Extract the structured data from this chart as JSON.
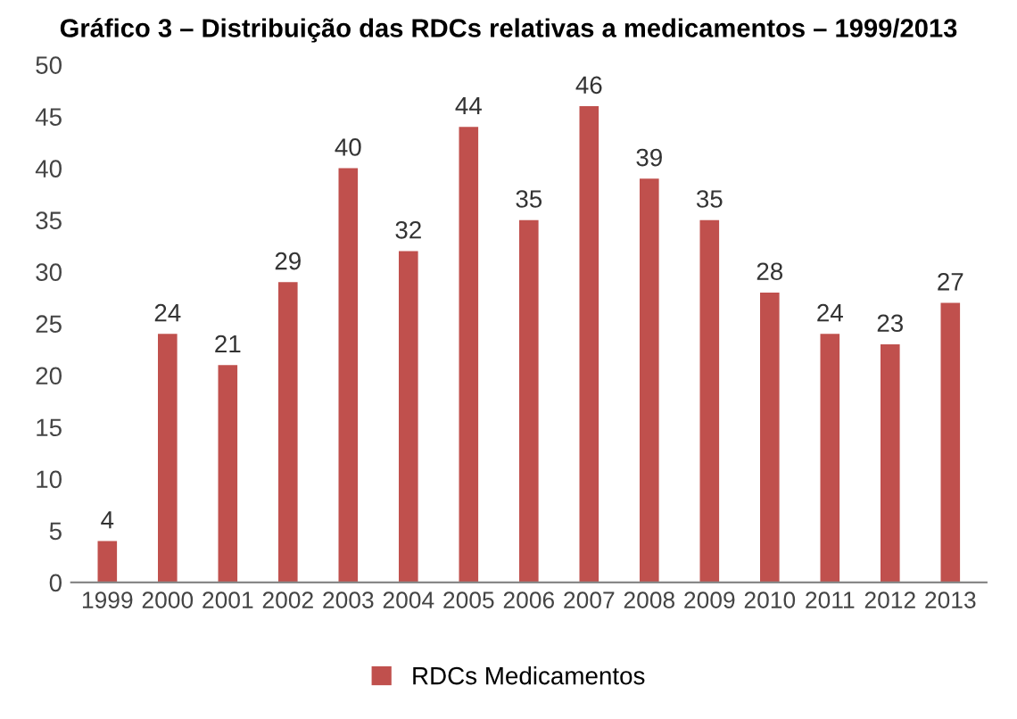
{
  "chart_data": {
    "type": "bar",
    "title": "Gráfico 3 – Distribuição das RDCs relativas a medicamentos – 1999/2013",
    "categories": [
      "1999",
      "2000",
      "2001",
      "2002",
      "2003",
      "2004",
      "2005",
      "2006",
      "2007",
      "2008",
      "2009",
      "2010",
      "2011",
      "2012",
      "2013"
    ],
    "series": [
      {
        "name": "RDCs Medicamentos",
        "color": "#c0504d",
        "values": [
          4,
          24,
          21,
          29,
          40,
          32,
          44,
          35,
          46,
          39,
          35,
          28,
          24,
          23,
          27
        ]
      }
    ],
    "ylim": [
      0,
      50
    ],
    "yticks": [
      0,
      5,
      10,
      15,
      20,
      25,
      30,
      35,
      40,
      45,
      50
    ],
    "data_labels": true,
    "legend": "bottom",
    "grid": false
  }
}
